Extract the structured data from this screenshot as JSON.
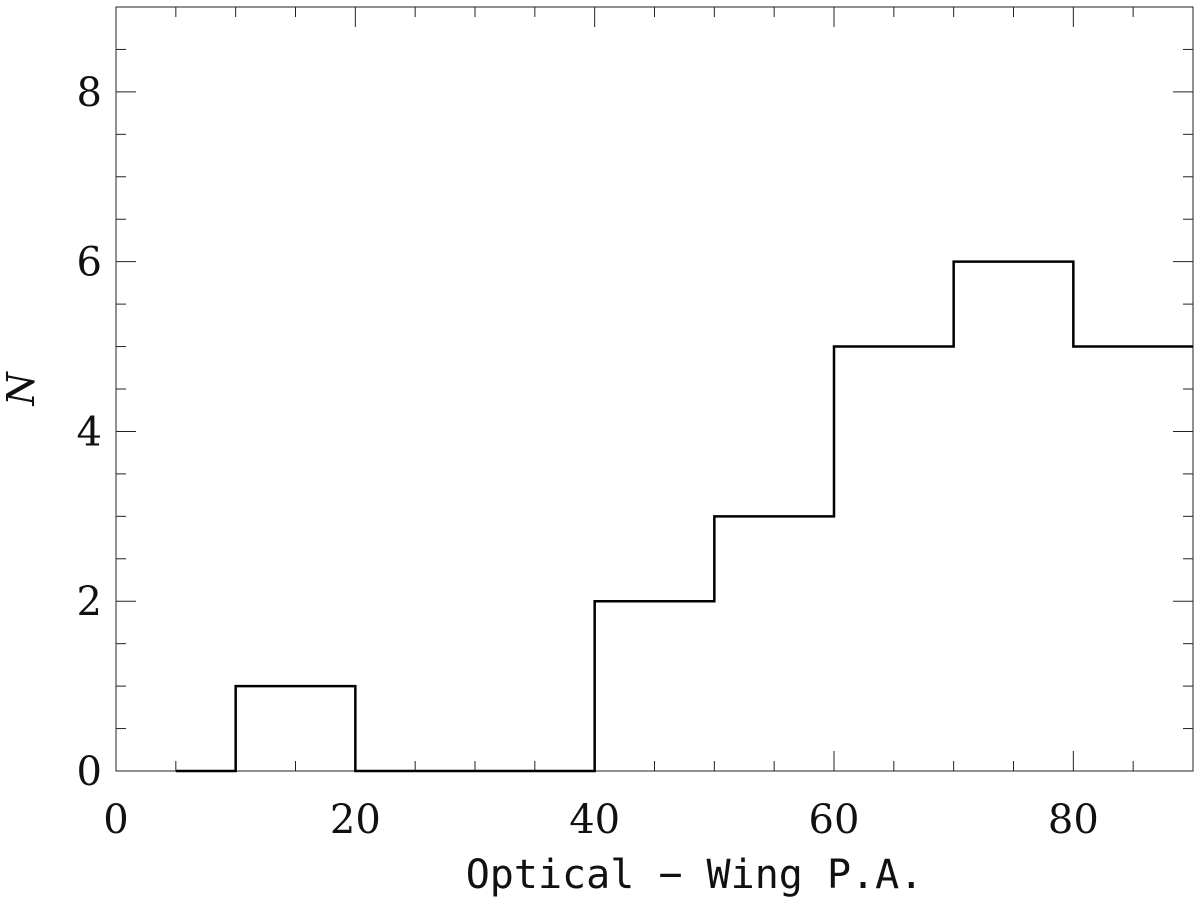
{
  "chart_data": {
    "type": "bar",
    "style": "step-histogram",
    "title": "",
    "xlabel": "Optical − Wing P.A.",
    "ylabel": "N",
    "xlim": [
      0,
      90
    ],
    "ylim": [
      0,
      9
    ],
    "x_ticks": [
      0,
      20,
      40,
      60,
      80
    ],
    "x_tick_labels": [
      "0",
      "20",
      "40",
      "60",
      "80"
    ],
    "x_minor_step": 5,
    "y_ticks": [
      0,
      2,
      4,
      6,
      8
    ],
    "y_tick_labels": [
      "0",
      "2",
      "4",
      "6",
      "8"
    ],
    "y_minor_step": 0.5,
    "grid": false,
    "bins": [
      {
        "x0": 5,
        "x1": 10,
        "count": 0
      },
      {
        "x0": 10,
        "x1": 20,
        "count": 1
      },
      {
        "x0": 20,
        "x1": 30,
        "count": 0
      },
      {
        "x0": 30,
        "x1": 40,
        "count": 0
      },
      {
        "x0": 40,
        "x1": 50,
        "count": 2
      },
      {
        "x0": 50,
        "x1": 60,
        "count": 3
      },
      {
        "x0": 60,
        "x1": 70,
        "count": 5
      },
      {
        "x0": 70,
        "x1": 80,
        "count": 6
      },
      {
        "x0": 80,
        "x1": 90,
        "count": 5
      }
    ],
    "line_color": "#000000",
    "axis_color": "#222222"
  }
}
